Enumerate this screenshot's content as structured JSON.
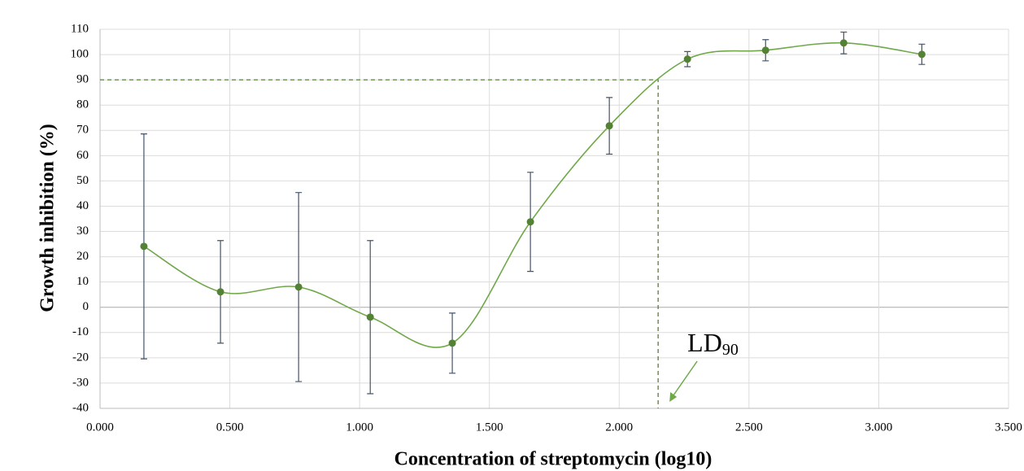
{
  "chart_data": {
    "type": "scatter",
    "x_label": "Concentration of streptomycin (log10)",
    "y_label": "Growth inhibition (%)",
    "series": [
      {
        "name": "Growth inhibition",
        "color": "#548235",
        "line_color": "#70a84a",
        "error_color": "#44546a",
        "x": [
          0.169,
          0.464,
          0.765,
          1.041,
          1.357,
          1.658,
          1.962,
          2.263,
          2.564,
          2.865,
          3.166
        ],
        "values": [
          24.1,
          6.1,
          8,
          -3.9,
          -14.2,
          33.8,
          71.8,
          98.2,
          101.7,
          104.6,
          100.1
        ],
        "errors": [
          44.5,
          20.3,
          37.4,
          30.3,
          11.9,
          19.6,
          11.2,
          3,
          4.2,
          4.3,
          4
        ]
      }
    ],
    "xlim": [
      0,
      3.5
    ],
    "xticks": [
      {
        "value": 0,
        "label": "0.000"
      },
      {
        "value": 0.5,
        "label": "0.500"
      },
      {
        "value": 1,
        "label": "1.000"
      },
      {
        "value": 1.5,
        "label": "1.500"
      },
      {
        "value": 2,
        "label": "2.000"
      },
      {
        "value": 2.5,
        "label": "2.500"
      },
      {
        "value": 3,
        "label": "3.000"
      },
      {
        "value": 3.5,
        "label": "3.500"
      }
    ],
    "ylim": [
      -40,
      110
    ],
    "yticks": [
      -40,
      -30,
      -20,
      -10,
      0,
      10,
      20,
      30,
      40,
      50,
      60,
      70,
      80,
      90,
      100,
      110
    ],
    "grid": true,
    "annotation": {
      "text": "LD",
      "subscript": "90",
      "x": 2.15,
      "y": 90
    }
  }
}
